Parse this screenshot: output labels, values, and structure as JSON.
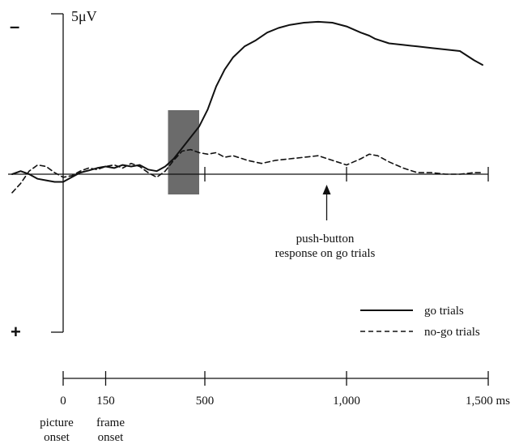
{
  "chart_data": {
    "type": "line",
    "scale_label": "5μV",
    "polarity": {
      "negative": "–",
      "positive": "+"
    },
    "x_unit": "ms",
    "xlim": [
      -180,
      1500
    ],
    "ylim": [
      -5.4,
      5
    ],
    "x_ticks": [
      0,
      150,
      500,
      1000,
      1500
    ],
    "x_tick_labels": [
      "0",
      "150",
      "500",
      "1,000",
      "1,500 ms"
    ],
    "x_onset_labels": [
      {
        "x": 0,
        "lines": [
          "picture",
          "onset"
        ]
      },
      {
        "x": 150,
        "lines": [
          "frame",
          "onset"
        ]
      }
    ],
    "shaded_window": [
      370,
      480
    ],
    "annotation": {
      "x": 930,
      "lines": [
        "push-button",
        "response on go trials"
      ]
    },
    "legend": [
      "go trials",
      "no-go trials"
    ],
    "legend_position": "bottom-right",
    "series": [
      {
        "name": "go trials",
        "style": "solid",
        "x": [
          -180,
          -150,
          -120,
          -90,
          -60,
          -30,
          0,
          30,
          60,
          90,
          120,
          150,
          180,
          210,
          240,
          270,
          300,
          330,
          360,
          390,
          420,
          450,
          480,
          510,
          540,
          570,
          600,
          640,
          680,
          720,
          760,
          800,
          850,
          900,
          950,
          1000,
          1050,
          1080,
          1100,
          1150,
          1200,
          1250,
          1300,
          1350,
          1400,
          1450,
          1480
        ],
        "y": [
          0.0,
          0.1,
          0.0,
          -0.15,
          -0.2,
          -0.25,
          -0.25,
          -0.1,
          0.05,
          0.12,
          0.2,
          0.25,
          0.2,
          0.3,
          0.25,
          0.3,
          0.15,
          0.1,
          0.25,
          0.5,
          0.85,
          1.2,
          1.55,
          2.1,
          2.85,
          3.4,
          3.8,
          4.15,
          4.35,
          4.6,
          4.75,
          4.85,
          4.92,
          4.95,
          4.92,
          4.8,
          4.6,
          4.5,
          4.4,
          4.25,
          4.2,
          4.15,
          4.1,
          4.05,
          4.0,
          3.7,
          3.55
        ]
      },
      {
        "name": "no-go trials",
        "style": "dashed",
        "x": [
          -180,
          -150,
          -120,
          -90,
          -60,
          -30,
          0,
          30,
          60,
          90,
          120,
          150,
          180,
          210,
          240,
          270,
          300,
          330,
          360,
          390,
          420,
          450,
          480,
          510,
          540,
          570,
          600,
          650,
          700,
          750,
          800,
          850,
          900,
          950,
          1000,
          1050,
          1080,
          1110,
          1150,
          1200,
          1250,
          1300,
          1350,
          1400,
          1450,
          1480
        ],
        "y": [
          -0.6,
          -0.3,
          0.1,
          0.3,
          0.25,
          0.05,
          -0.1,
          -0.05,
          0.1,
          0.2,
          0.15,
          0.25,
          0.3,
          0.2,
          0.35,
          0.25,
          0.05,
          -0.1,
          0.1,
          0.45,
          0.75,
          0.8,
          0.7,
          0.65,
          0.7,
          0.55,
          0.6,
          0.45,
          0.35,
          0.45,
          0.5,
          0.55,
          0.6,
          0.45,
          0.3,
          0.5,
          0.65,
          0.6,
          0.4,
          0.2,
          0.05,
          0.05,
          0.0,
          0.0,
          0.05,
          0.05
        ]
      }
    ]
  }
}
